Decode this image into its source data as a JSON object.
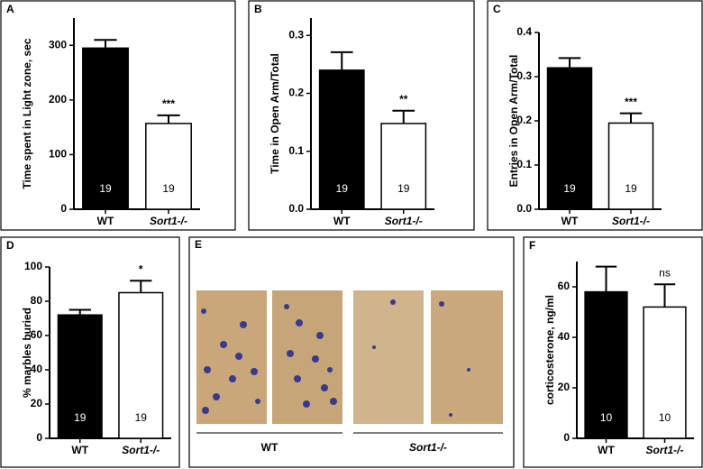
{
  "chart_data": [
    {
      "type": "bar",
      "panel": "A",
      "ylabel": "Time spent in Light zone, sec",
      "categories": [
        "WT",
        "Sort1-/-"
      ],
      "values": [
        295,
        157
      ],
      "errors": [
        15,
        15
      ],
      "n": [
        19,
        19
      ],
      "significance": "***",
      "colors": [
        "#000000",
        "#ffffff"
      ],
      "ylim": [
        0,
        350
      ],
      "yticks": [
        0,
        100,
        200,
        300
      ]
    },
    {
      "type": "bar",
      "panel": "B",
      "ylabel": "Time in Open Arm/Total",
      "categories": [
        "WT",
        "Sort1-/-"
      ],
      "values": [
        0.24,
        0.148
      ],
      "errors": [
        0.031,
        0.022
      ],
      "n": [
        19,
        19
      ],
      "significance": "**",
      "colors": [
        "#000000",
        "#ffffff"
      ],
      "ylim": [
        0,
        0.33
      ],
      "yticks": [
        {
          "value": 0,
          "label": "0.0"
        },
        0.1,
        0.2,
        0.3
      ]
    },
    {
      "type": "bar",
      "panel": "C",
      "ylabel": "Entries in Open Arm/Total",
      "categories": [
        "WT",
        "Sort1-/-"
      ],
      "values": [
        0.32,
        0.195
      ],
      "errors": [
        0.022,
        0.022
      ],
      "n": [
        19,
        19
      ],
      "significance": "***",
      "colors": [
        "#000000",
        "#ffffff"
      ],
      "ylim": [
        0,
        0.4
      ],
      "yticks": [
        {
          "value": 0,
          "label": "0.0"
        },
        0.1,
        0.2,
        0.3,
        0.4
      ]
    },
    {
      "type": "bar",
      "panel": "D",
      "ylabel": "% marbles buried",
      "categories": [
        "WT",
        "Sort1-/-"
      ],
      "values": [
        72,
        85
      ],
      "errors": [
        3,
        7
      ],
      "n": [
        19,
        19
      ],
      "significance": "*",
      "colors": [
        "#000000",
        "#ffffff"
      ],
      "ylim": [
        0,
        100
      ],
      "yticks": [
        0,
        20,
        40,
        60,
        80,
        100
      ]
    },
    {
      "type": "bar",
      "panel": "F",
      "ylabel": "corticosterone, ng/ml",
      "categories": [
        "WT",
        "Sort1-/-"
      ],
      "values": [
        58,
        52
      ],
      "errors": [
        10,
        9
      ],
      "n": [
        10,
        10
      ],
      "significance": "ns",
      "colors": [
        "#000000",
        "#ffffff"
      ],
      "ylim": [
        0,
        70
      ],
      "yticks": [
        0,
        20,
        40,
        60
      ]
    }
  ],
  "image_panel": {
    "panel": "E",
    "groups": [
      "WT",
      "Sort1-/-"
    ]
  }
}
